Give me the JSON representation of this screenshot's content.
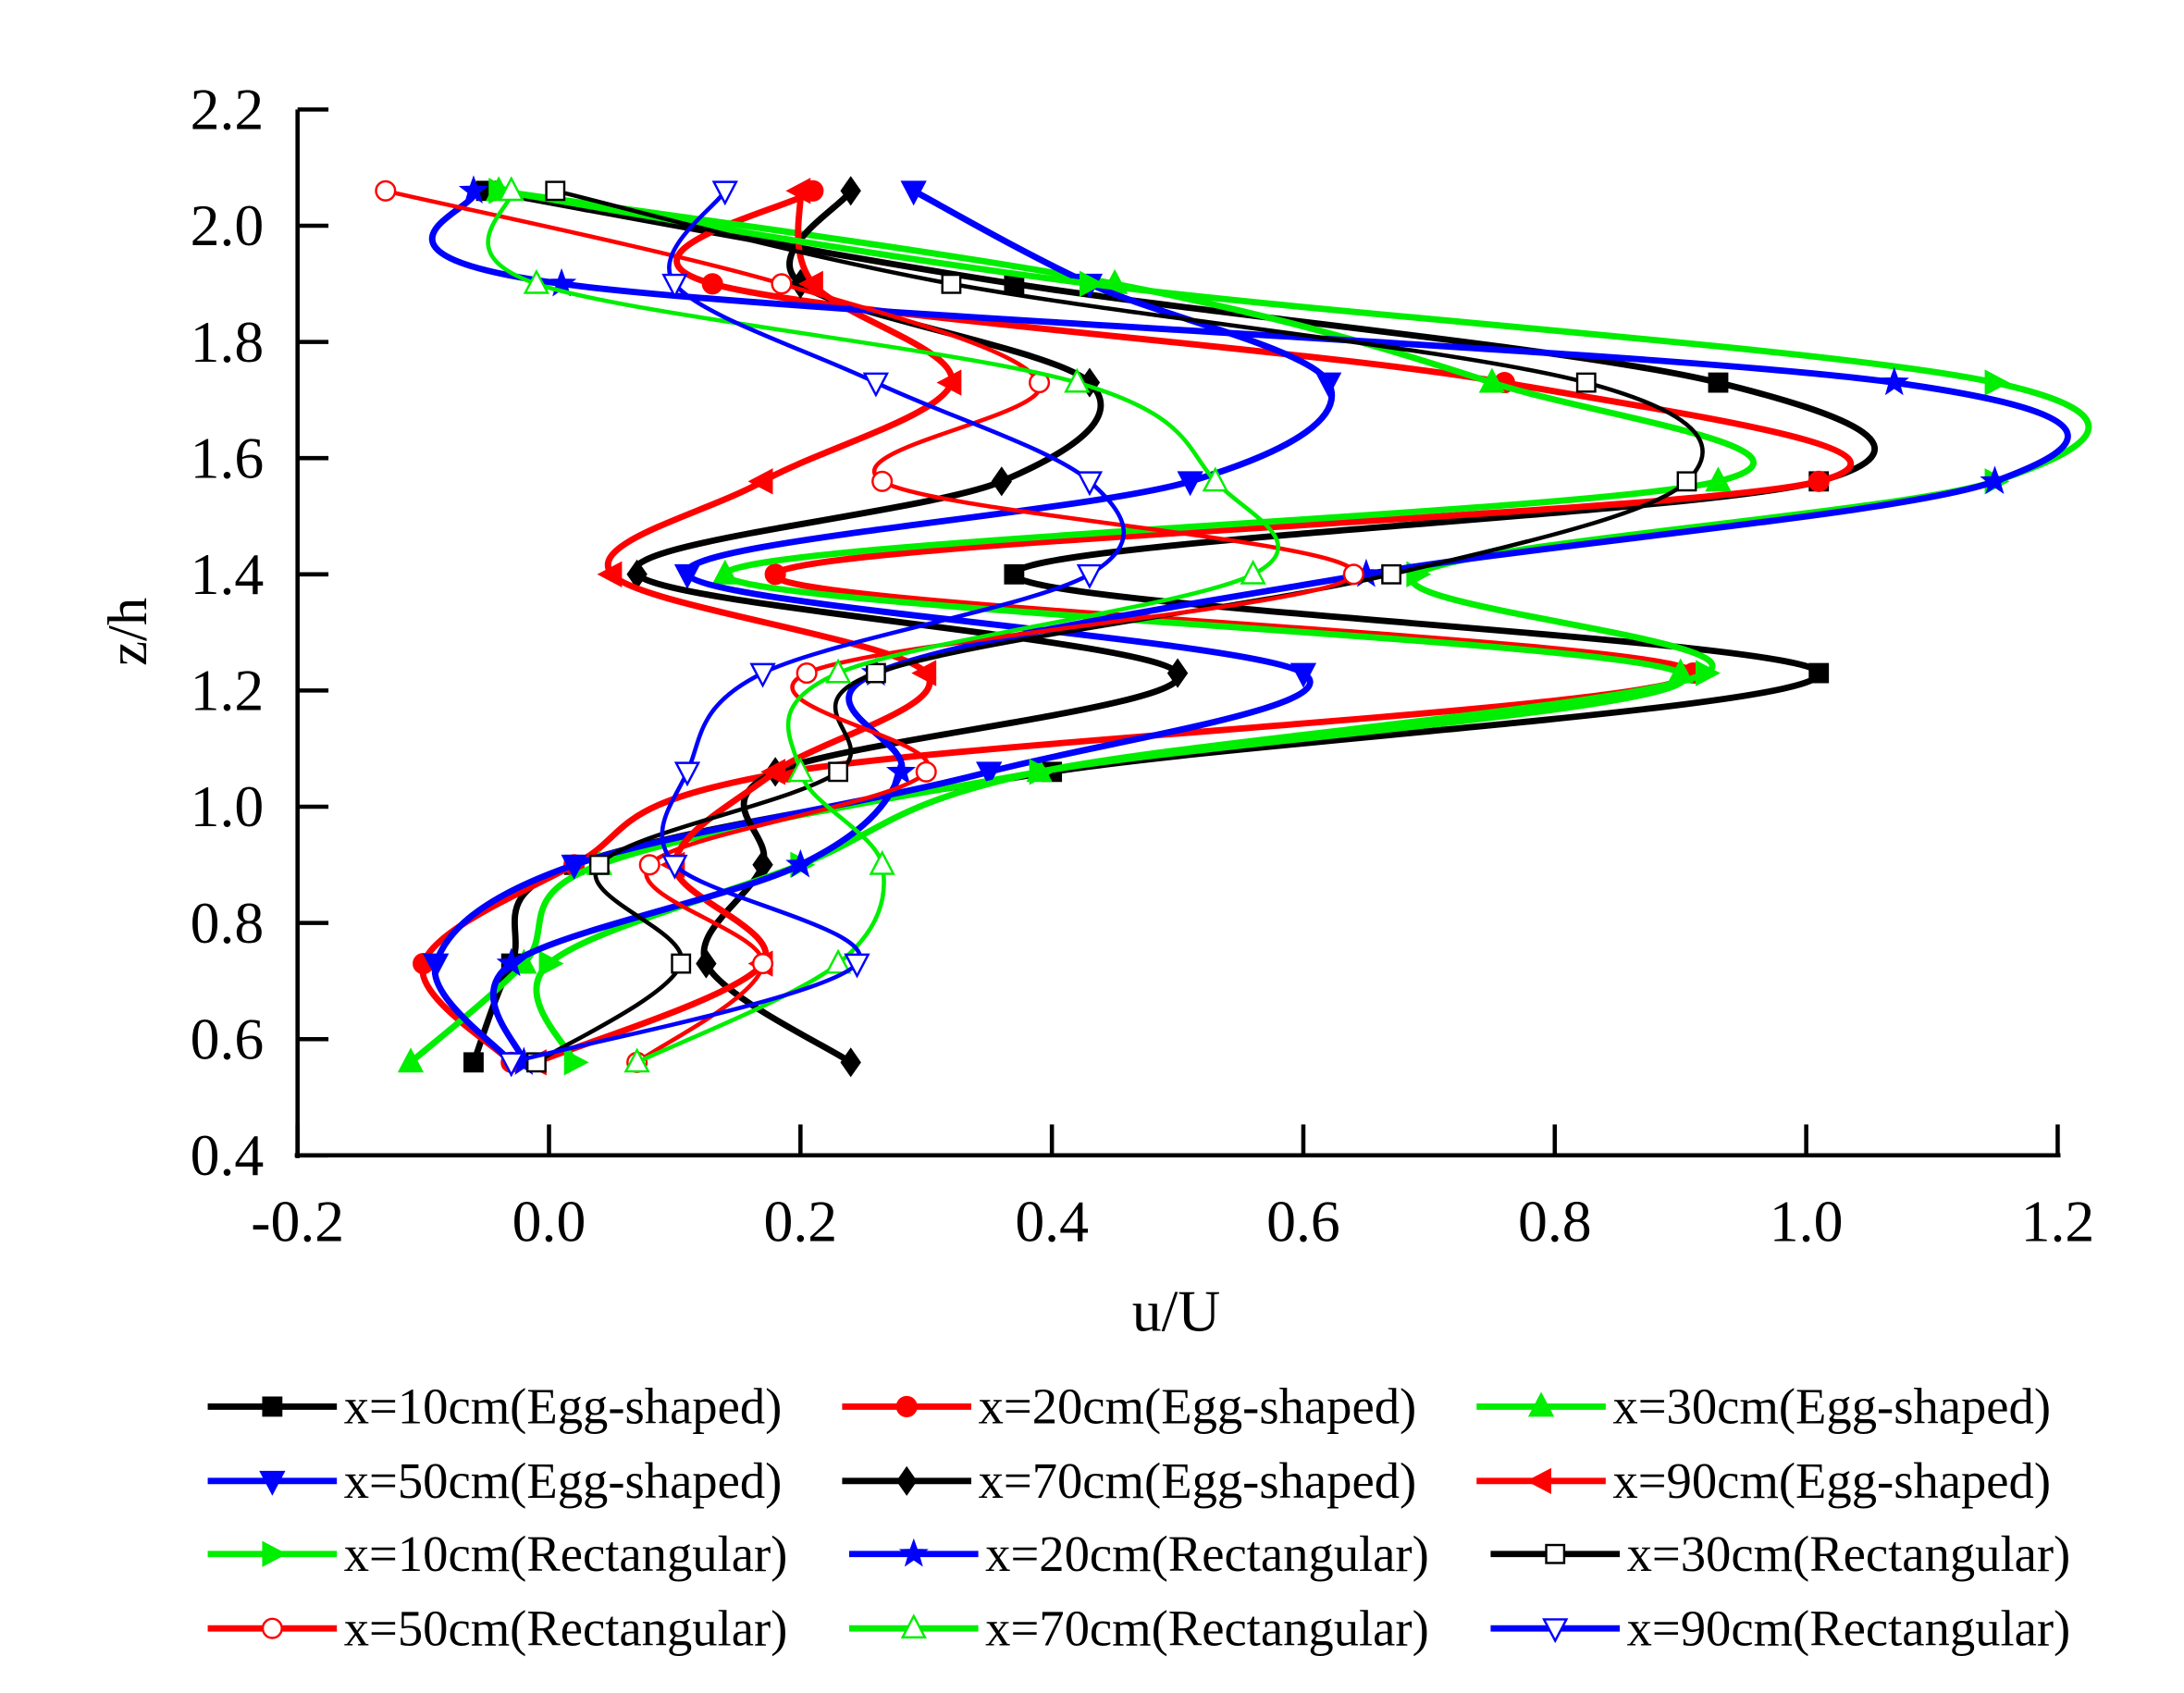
{
  "chart_data": {
    "type": "line",
    "xlabel": "u/U",
    "ylabel": "z/h",
    "xlim": [
      -0.2,
      1.2
    ],
    "ylim": [
      0.4,
      2.2
    ],
    "xticks": [
      -0.2,
      0.0,
      0.2,
      0.4,
      0.6,
      0.8,
      1.0,
      1.2
    ],
    "yticks": [
      0.4,
      0.6,
      0.8,
      1.0,
      1.2,
      1.4,
      1.6,
      1.8,
      2.0,
      2.2
    ],
    "xtick_labels": [
      "-0.2",
      "0.0",
      "0.2",
      "0.4",
      "0.6",
      "0.8",
      "1.0",
      "1.2"
    ],
    "ytick_labels": [
      "0.4",
      "0.6",
      "0.8",
      "1.0",
      "1.2",
      "1.4",
      "1.6",
      "1.8",
      "2.0",
      "2.2"
    ],
    "grid": false,
    "legend_position": "bottom",
    "z": [
      0.56,
      0.73,
      0.9,
      1.06,
      1.23,
      1.4,
      1.56,
      1.73,
      1.9,
      2.06
    ],
    "series": [
      {
        "name": "x=10cm(Egg-shaped)",
        "color": "#000000",
        "marker": "square-filled",
        "u": [
          -0.06,
          -0.03,
          0.02,
          0.4,
          1.01,
          0.37,
          1.01,
          0.93,
          0.37,
          -0.05
        ]
      },
      {
        "name": "x=20cm(Egg-shaped)",
        "color": "#ff0000",
        "marker": "circle-filled",
        "u": [
          -0.03,
          -0.1,
          0.02,
          0.19,
          0.91,
          0.18,
          1.01,
          0.76,
          0.13,
          0.21
        ]
      },
      {
        "name": "x=30cm(Egg-shaped)",
        "color": "#00ee00",
        "marker": "triangle-up-filled",
        "u": [
          -0.11,
          -0.02,
          0.04,
          0.39,
          0.9,
          0.14,
          0.93,
          0.75,
          0.45,
          -0.04
        ]
      },
      {
        "name": "x=50cm(Egg-shaped)",
        "color": "#0000ff",
        "marker": "triangle-down-filled",
        "u": [
          -0.03,
          -0.09,
          0.02,
          0.35,
          0.6,
          0.11,
          0.51,
          0.62,
          0.43,
          0.29
        ]
      },
      {
        "name": "x=70cm(Egg-shaped)",
        "color": "#000000",
        "marker": "diamond-filled",
        "u": [
          0.24,
          0.125,
          0.17,
          0.18,
          0.5,
          0.07,
          0.36,
          0.43,
          0.2,
          0.24
        ]
      },
      {
        "name": "x=90cm(Egg-shaped)",
        "color": "#ff0000",
        "marker": "triangle-left-filled",
        "u": [
          -0.01,
          0.17,
          0.1,
          0.18,
          0.3,
          0.05,
          0.17,
          0.32,
          0.21,
          0.2
        ]
      },
      {
        "name": "x=10cm(Rectangular)",
        "color": "#00ee00",
        "marker": "triangle-right-filled",
        "u": [
          0.02,
          0.0,
          0.2,
          0.39,
          0.92,
          0.69,
          1.15,
          1.15,
          0.43,
          -0.04
        ]
      },
      {
        "name": "x=20cm(Rectangular)",
        "color": "#0000ff",
        "marker": "star-filled",
        "u": [
          -0.02,
          -0.03,
          0.2,
          0.28,
          0.26,
          0.65,
          1.15,
          1.07,
          0.01,
          -0.06
        ]
      },
      {
        "name": "x=30cm(Rectangular)",
        "color": "#000000",
        "marker": "square-open",
        "u": [
          -0.01,
          0.105,
          0.04,
          0.23,
          0.26,
          0.67,
          0.905,
          0.825,
          0.32,
          0.005
        ]
      },
      {
        "name": "x=50cm(Rectangular)",
        "color": "#ff0000",
        "marker": "circle-open",
        "u": [
          0.07,
          0.17,
          0.08,
          0.3,
          0.205,
          0.64,
          0.265,
          0.39,
          0.185,
          -0.13
        ]
      },
      {
        "name": "x=70cm(Rectangular)",
        "color": "#00ee00",
        "marker": "triangle-up-open",
        "u": [
          0.07,
          0.23,
          0.265,
          0.2,
          0.23,
          0.56,
          0.53,
          0.42,
          -0.01,
          -0.03
        ]
      },
      {
        "name": "x=90cm(Rectangular)",
        "color": "#0000ff",
        "marker": "triangle-down-open",
        "u": [
          -0.03,
          0.245,
          0.1,
          0.11,
          0.17,
          0.43,
          0.43,
          0.26,
          0.1,
          0.14
        ]
      }
    ]
  }
}
